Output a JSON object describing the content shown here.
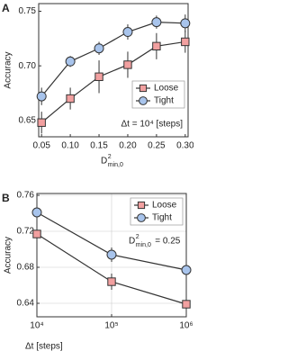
{
  "chart_data": [
    {
      "type": "line",
      "label": "A",
      "ylabel": "Accuracy",
      "xlabel": {
        "base": "D",
        "sup": "2",
        "sub": "min,0"
      },
      "annotation": {
        "text": "Δt = 10⁴ [steps]"
      },
      "x": [
        0.05,
        0.1,
        0.15,
        0.2,
        0.25,
        0.3
      ],
      "series": [
        {
          "name": "Loose",
          "color": "#f2a0a0",
          "marker": "square",
          "values": [
            0.648,
            0.67,
            0.69,
            0.701,
            0.718,
            0.722
          ],
          "errors": [
            0.01,
            0.01,
            0.015,
            0.012,
            0.012,
            0.01
          ]
        },
        {
          "name": "Tight",
          "color": "#a8c4ec",
          "marker": "circle",
          "values": [
            0.672,
            0.704,
            0.716,
            0.731,
            0.74,
            0.739
          ],
          "errors": [
            0.008,
            0.005,
            0.006,
            0.007,
            0.006,
            0.008
          ]
        }
      ],
      "xlim": [
        0.045,
        0.305
      ],
      "ylim": [
        0.635,
        0.757
      ],
      "xticks": [
        0.05,
        {
          "value": 0.1,
          "label": "0.10"
        },
        0.15,
        {
          "value": 0.2,
          "label": "0.20"
        },
        0.25,
        {
          "value": 0.3,
          "label": "0.30"
        }
      ],
      "yticks": [
        0.65,
        {
          "value": 0.7,
          "label": "0.70"
        },
        0.75
      ],
      "grid": false,
      "log_x": false,
      "legend": "lower right"
    },
    {
      "type": "line",
      "label": "B",
      "ylabel": "Accuracy",
      "xlabel": {
        "base": "Δt [steps]"
      },
      "annotation": {
        "base": "D",
        "sup": "2",
        "sub": "min,0",
        "text": "= 0.25"
      },
      "x": [
        10000,
        100000,
        1000000
      ],
      "series": [
        {
          "name": "Loose",
          "color": "#f2a0a0",
          "marker": "square",
          "values": [
            0.717,
            0.664,
            0.639
          ],
          "errors": [
            0.008,
            0.009,
            0.01
          ]
        },
        {
          "name": "Tight",
          "color": "#a8c4ec",
          "marker": "circle",
          "values": [
            0.741,
            0.694,
            0.677
          ],
          "errors": [
            0.008,
            0.008,
            0.01
          ]
        }
      ],
      "xlim": [
        10000,
        1000000
      ],
      "ylim": [
        0.625,
        0.762
      ],
      "xticks": [
        {
          "value": 10000,
          "label": "10⁴"
        },
        {
          "value": 100000,
          "label": "10⁵"
        },
        {
          "value": 1000000,
          "label": "10⁶"
        }
      ],
      "yticks": [
        0.64,
        0.68,
        0.72,
        0.76
      ],
      "grid": true,
      "log_x": true,
      "legend": "upper right"
    }
  ]
}
